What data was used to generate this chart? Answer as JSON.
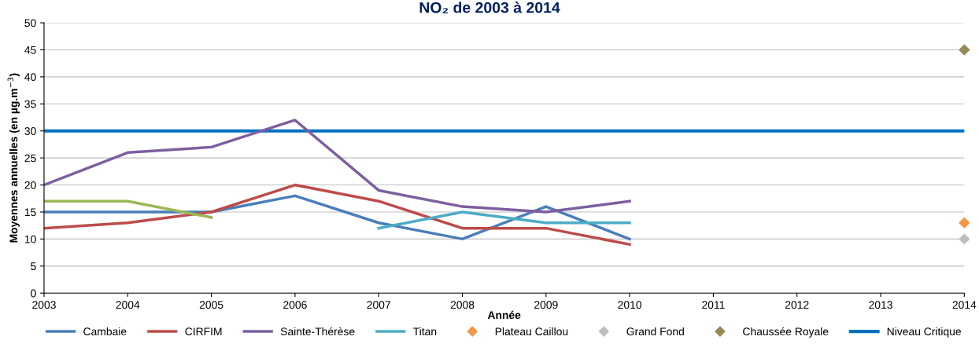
{
  "chart_data": {
    "type": "line",
    "title": "NO₂ de 2003 à 2014",
    "xlabel": "Année",
    "ylabel": "Moyennes annuelles (en µg.m$^{−3}$)",
    "xlim": [
      2003,
      2014
    ],
    "xticks": [
      2003,
      2004,
      2005,
      2006,
      2007,
      2008,
      2009,
      2010,
      2011,
      2012,
      2013,
      2014
    ],
    "ylim": [
      0,
      50
    ],
    "yticks": [
      0,
      5,
      10,
      15,
      20,
      25,
      30,
      35,
      40,
      45,
      50
    ],
    "grid": "y",
    "legend": "bottom",
    "line_style": "solid",
    "series": [
      {
        "name": "Cambaie",
        "color": "#4a7ebb",
        "x": [
          2003,
          2004,
          2005,
          2006,
          2007,
          2008,
          2009,
          2010
        ],
        "values": [
          15,
          15,
          15,
          18,
          13,
          10,
          16,
          10
        ]
      },
      {
        "name": "CIRFIM",
        "color": "#be4b48",
        "x": [
          2003,
          2004,
          2005,
          2006,
          2007,
          2008,
          2009,
          2010
        ],
        "values": [
          12,
          13,
          15,
          20,
          17,
          12,
          12,
          9
        ]
      },
      {
        "color": "#98b954",
        "x": [
          2003,
          2004,
          2005
        ],
        "values": [
          17,
          17,
          14
        ]
      },
      {
        "name": "Sainte-Thérèse",
        "color": "#7d5fa0",
        "x": [
          2003,
          2004,
          2005,
          2006,
          2007,
          2008,
          2009,
          2010
        ],
        "values": [
          20,
          26,
          27,
          32,
          19,
          16,
          15,
          17
        ]
      },
      {
        "name": "Titan",
        "color": "#4bacc6",
        "x": [
          2007,
          2008,
          2009,
          2010
        ],
        "values": [
          12,
          15,
          13,
          13
        ]
      },
      {
        "name": "Plateau Caillou",
        "type": "scatter",
        "marker": "diamond",
        "color": "#f79646",
        "x": [
          2014
        ],
        "values": [
          13
        ]
      },
      {
        "name": "Grand Fond",
        "type": "scatter",
        "marker": "diamond",
        "color": "#bfbfbf",
        "x": [
          2014
        ],
        "values": [
          10
        ]
      },
      {
        "name": "Chaussée Royale",
        "type": "scatter",
        "marker": "diamond",
        "color": "#948a54",
        "x": [
          2014
        ],
        "values": [
          45
        ]
      }
    ],
    "ref_lines": [
      {
        "axis": "y",
        "value": 30,
        "label": "Niveau Critique",
        "color": "#0070c0",
        "line_style": "solid"
      }
    ]
  }
}
